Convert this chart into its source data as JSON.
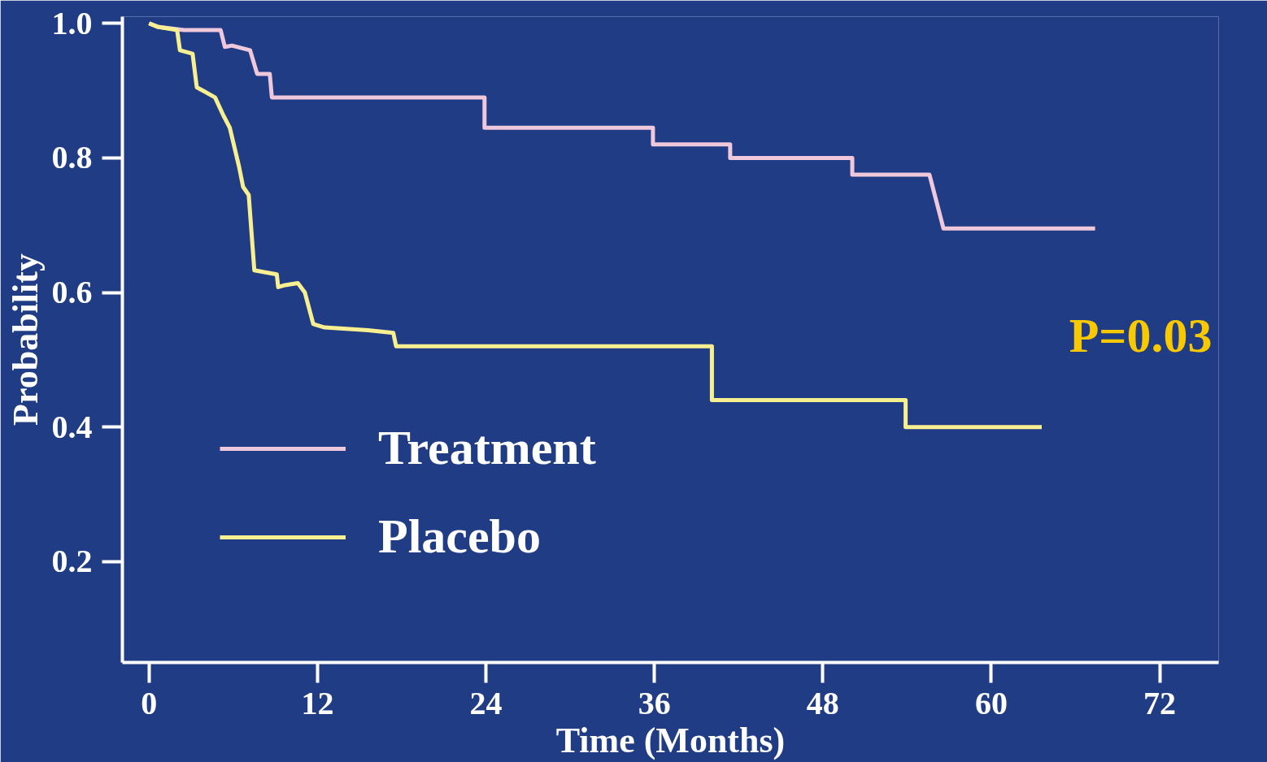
{
  "chart_data": {
    "type": "line",
    "xlabel": "Time (Months)",
    "ylabel": "Probability",
    "xlim": [
      -1.9,
      76.2
    ],
    "ylim": [
      0.05,
      1.01
    ],
    "xticks": [
      0,
      12,
      24,
      36,
      48,
      60,
      72
    ],
    "yticks": [
      {
        "value": 0.2,
        "label": "0.2"
      },
      {
        "value": 0.4,
        "label": "0.4"
      },
      {
        "value": 0.6,
        "label": "0.6"
      },
      {
        "value": 0.8,
        "label": "0.8"
      },
      {
        "value": 1.0,
        "label": "1.0"
      }
    ],
    "grid": false,
    "legend": "bottom left",
    "marker": "none",
    "line_style": "solid",
    "annotations": [
      "P=0.03"
    ],
    "series": [
      {
        "name": "Treatment",
        "color": "#f0c8dc",
        "x": [
          0,
          0.6,
          2.5,
          5.1,
          5.4,
          5.9,
          7.2,
          7.7,
          8.6,
          8.75,
          23.9,
          23.9,
          35.9,
          35.9,
          41.4,
          41.4,
          50.1,
          50.1,
          55.6,
          56.6,
          67.4
        ],
        "values": [
          1.0,
          0.995,
          0.99,
          0.99,
          0.965,
          0.967,
          0.96,
          0.925,
          0.925,
          0.89,
          0.89,
          0.845,
          0.845,
          0.82,
          0.82,
          0.8,
          0.8,
          0.775,
          0.775,
          0.695,
          0.695
        ]
      },
      {
        "name": "Placebo",
        "color": "#f8f090",
        "x": [
          0,
          0.6,
          2,
          2.2,
          3.1,
          3.4,
          4.7,
          5.3,
          5.75,
          6.4,
          6.7,
          7.1,
          7.5,
          9.1,
          9.2,
          9.7,
          10.6,
          11.1,
          11.7,
          12.5,
          15.6,
          17.4,
          17.6,
          40.1,
          40.1,
          53.9,
          53.9,
          63.6
        ],
        "values": [
          1.0,
          0.995,
          0.99,
          0.96,
          0.955,
          0.905,
          0.89,
          0.863,
          0.845,
          0.788,
          0.757,
          0.745,
          0.633,
          0.627,
          0.608,
          0.611,
          0.614,
          0.6,
          0.553,
          0.548,
          0.544,
          0.54,
          0.52,
          0.52,
          0.44,
          0.44,
          0.4,
          0.4
        ]
      }
    ]
  }
}
